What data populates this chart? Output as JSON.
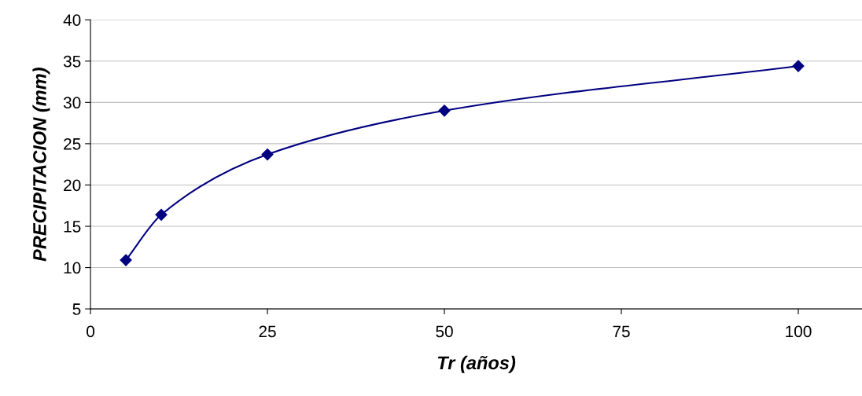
{
  "chart_data": {
    "type": "line",
    "xlabel": "Tr (años)",
    "ylabel": "PRECIPITACION (mm)",
    "x": [
      5,
      10,
      25,
      50,
      100
    ],
    "series": [
      {
        "color": "#000080",
        "values": [
          10.9,
          16.4,
          23.7,
          29.0,
          34.4
        ]
      }
    ],
    "xlim": [
      0,
      109
    ],
    "xticks": [
      0,
      25,
      50,
      75,
      100
    ],
    "ylim": [
      5,
      40
    ],
    "yticks": [
      5,
      10,
      15,
      20,
      25,
      30,
      35,
      40
    ],
    "grid": "y",
    "marker": "diamond",
    "line_style": "solid",
    "legend": false
  }
}
